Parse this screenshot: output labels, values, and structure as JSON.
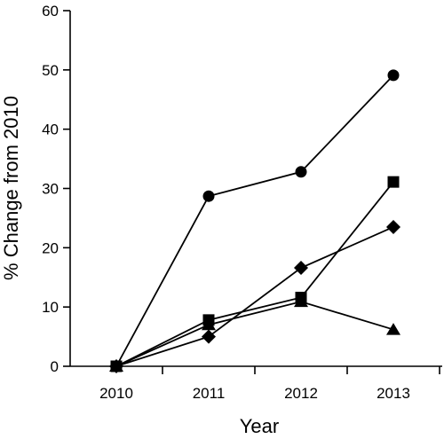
{
  "chart_data": {
    "type": "line",
    "title": "",
    "xlabel": "Year",
    "ylabel": "% Change from 2010",
    "categories": [
      "2010",
      "2011",
      "2012",
      "2013"
    ],
    "ylim": [
      0,
      60
    ],
    "yticks": [
      "0",
      "10",
      "20",
      "30",
      "40",
      "50",
      "60"
    ],
    "grid": false,
    "legend": "none",
    "color": "#000000",
    "series": [
      {
        "marker": "circle",
        "values": [
          0,
          28.7,
          32.8,
          49.1
        ]
      },
      {
        "marker": "square",
        "values": [
          0,
          7.8,
          11.6,
          31.1
        ]
      },
      {
        "marker": "diamond",
        "values": [
          0,
          5.0,
          16.6,
          23.5
        ]
      },
      {
        "marker": "triangle",
        "values": [
          0,
          7.0,
          10.9,
          6.2
        ]
      }
    ]
  }
}
